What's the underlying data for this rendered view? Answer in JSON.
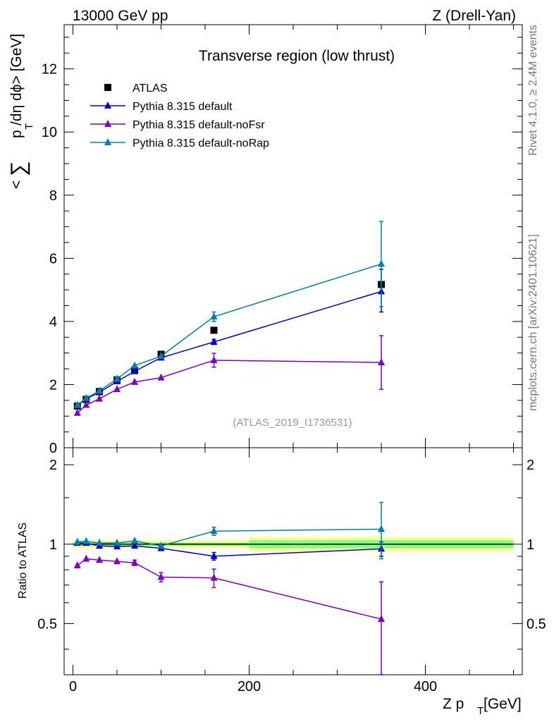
{
  "header": {
    "left": "13000 GeV pp",
    "right": "Z (Drell-Yan)"
  },
  "side_labels": {
    "rivet": "Rivet 4.1.0, ≥ 2.4M events",
    "mcplots": "mcplots.cern.ch [arXiv:2401.10621]"
  },
  "colors": {
    "atlas": "#000000",
    "default": "#0000cc",
    "noFsr": "#7f00bf",
    "noRap": "#0080a8",
    "band_inner": "#80ff80",
    "band_outer": "#ffff99"
  },
  "chart_data": [
    {
      "type": "line",
      "title": "Transverse region (low thrust)",
      "annotation": "(ATLAS_2019_I1736531)",
      "ylabel_parts": {
        "open": "<",
        "sum": "∑",
        "p": "p",
        "sub_t": "T",
        "rest": "/dη dϕ> [GeV]"
      },
      "xlim": [
        -10,
        510
      ],
      "ylim": [
        0,
        13.4
      ],
      "yticks": [
        0,
        2,
        4,
        6,
        8,
        10,
        12
      ],
      "ytick_labels": [
        "0",
        "2",
        "4",
        "6",
        "8",
        "10",
        "12"
      ],
      "x": [
        5,
        15,
        30,
        50,
        70,
        100,
        160,
        350
      ],
      "series": [
        {
          "name": "ATLAS",
          "marker": "square",
          "values": [
            1.32,
            1.53,
            1.78,
            2.15,
            2.45,
            2.96,
            3.72,
            5.17
          ]
        },
        {
          "name": "Pythia 8.315 default",
          "marker": "triangle",
          "values": [
            1.33,
            1.55,
            1.75,
            2.1,
            2.42,
            2.85,
            3.35,
            4.95
          ],
          "err_upper": [
            0,
            0,
            0,
            0,
            0,
            0,
            0.08,
            0.7
          ],
          "err_lower": [
            0,
            0,
            0,
            0,
            0,
            0,
            0.08,
            0.65
          ]
        },
        {
          "name": "Pythia 8.315 default-noFsr",
          "marker": "triangle",
          "values": [
            1.1,
            1.35,
            1.55,
            1.85,
            2.08,
            2.22,
            2.77,
            2.7
          ],
          "err_upper": [
            0,
            0,
            0,
            0,
            0,
            0,
            0.22,
            0.85
          ],
          "err_lower": [
            0,
            0,
            0,
            0,
            0,
            0,
            0.22,
            0.85
          ]
        },
        {
          "name": "Pythia 8.315 default-noRap",
          "marker": "triangle",
          "values": [
            1.35,
            1.57,
            1.8,
            2.18,
            2.6,
            2.9,
            4.15,
            5.82
          ],
          "err_upper": [
            0,
            0,
            0,
            0,
            0,
            0,
            0.15,
            1.35
          ],
          "err_lower": [
            0,
            0,
            0,
            0,
            0,
            0,
            0.15,
            1.35
          ]
        }
      ]
    },
    {
      "type": "line",
      "ylabel": "Ratio to ATLAS",
      "xlabel_parts": {
        "main": "Z p",
        "sub_t": "T",
        "unit": " [GeV]"
      },
      "xlim": [
        -10,
        510
      ],
      "ylim": [
        0.32,
        2.32
      ],
      "xticks": [
        0,
        200,
        400
      ],
      "xtick_labels": [
        "0",
        "200",
        "400"
      ],
      "yticks": [
        0.5,
        1,
        2
      ],
      "ytick_labels": [
        "0.5",
        "1",
        "2"
      ],
      "x": [
        5,
        15,
        30,
        50,
        70,
        100,
        160,
        350
      ],
      "bands": [
        {
          "x_from": 0,
          "x_to": 200,
          "outer": [
            0.965,
            1.035
          ],
          "inner": [
            0.985,
            1.015
          ]
        },
        {
          "x_from": 200,
          "x_to": 500,
          "outer": [
            0.935,
            1.065
          ],
          "inner": [
            0.965,
            1.035
          ]
        }
      ],
      "series": [
        {
          "name": "Pythia 8.315 default",
          "values": [
            1.01,
            1.01,
            0.985,
            0.98,
            0.985,
            0.965,
            0.9,
            0.96
          ],
          "err_upper": [
            0,
            0,
            0,
            0,
            0,
            0,
            0.03,
            0.06
          ],
          "err_lower": [
            0,
            0,
            0,
            0,
            0,
            0,
            0.03,
            0.06
          ]
        },
        {
          "name": "Pythia 8.315 default-noFsr",
          "values": [
            0.83,
            0.88,
            0.87,
            0.86,
            0.85,
            0.75,
            0.745,
            0.52
          ],
          "err_upper": [
            0,
            0,
            0,
            0,
            0.02,
            0.03,
            0.06,
            0.2
          ],
          "err_lower": [
            0,
            0,
            0,
            0,
            0.02,
            0.03,
            0.06,
            0.2
          ]
        },
        {
          "name": "Pythia 8.315 default-noRap",
          "values": [
            1.02,
            1.025,
            1.01,
            1.01,
            1.03,
            0.985,
            1.12,
            1.14
          ],
          "err_upper": [
            0,
            0,
            0,
            0,
            0,
            0,
            0.04,
            0.3
          ],
          "err_lower": [
            0,
            0,
            0,
            0,
            0,
            0,
            0.04,
            0.26
          ]
        }
      ]
    }
  ]
}
